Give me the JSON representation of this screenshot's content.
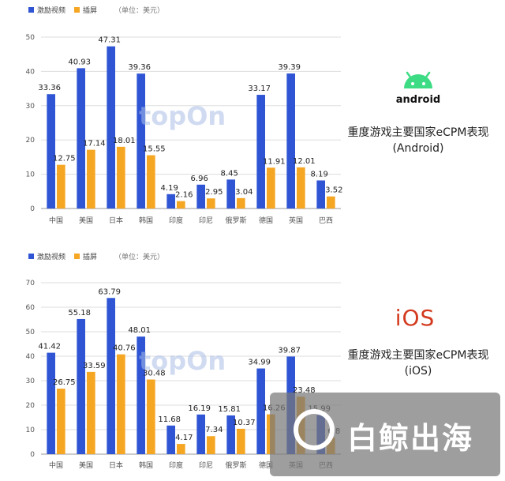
{
  "chart_data": [
    {
      "type": "bar",
      "legend": [
        "激励视频",
        "插屏"
      ],
      "unit_note": "（单位：美元）",
      "categories": [
        "中国",
        "美国",
        "日本",
        "韩国",
        "印度",
        "印尼",
        "俄罗斯",
        "德国",
        "英国",
        "巴西"
      ],
      "series": [
        {
          "name": "激励视频",
          "values": [
            33.36,
            40.93,
            47.31,
            39.36,
            4.19,
            6.96,
            8.45,
            33.17,
            39.39,
            8.19
          ]
        },
        {
          "name": "插屏",
          "values": [
            12.75,
            17.14,
            18.01,
            15.55,
            2.16,
            2.95,
            3.04,
            11.91,
            12.01,
            3.52
          ]
        }
      ],
      "ylim": [
        0,
        50
      ],
      "yticks": [
        0,
        10,
        20,
        30,
        40,
        50
      ],
      "grid": true,
      "legend_position": "top-left",
      "colors": {
        "激励视频": "#2f55d4",
        "插屏": "#f5a623"
      }
    },
    {
      "type": "bar",
      "legend": [
        "激励视频",
        "插屏"
      ],
      "unit_note": "（单位：美元）",
      "categories": [
        "中国",
        "美国",
        "日本",
        "韩国",
        "印度",
        "印尼",
        "俄罗斯",
        "德国",
        "英国",
        "巴西"
      ],
      "series": [
        {
          "name": "激励视频",
          "values": [
            41.42,
            55.18,
            63.79,
            48.01,
            11.68,
            16.19,
            15.81,
            34.99,
            39.87,
            15.99
          ]
        },
        {
          "name": "插屏",
          "values": [
            26.75,
            33.59,
            40.76,
            30.48,
            4.17,
            7.34,
            10.37,
            16.26,
            23.48,
            6.8
          ]
        }
      ],
      "ylim": [
        0,
        70
      ],
      "yticks": [
        0,
        10,
        20,
        30,
        40,
        50,
        60,
        70
      ],
      "grid": true,
      "legend_position": "top-left",
      "colors": {
        "激励视频": "#2f55d4",
        "插屏": "#f5a623"
      }
    }
  ],
  "android_panel": {
    "logo_text": "android",
    "title_line1": "重度游戏主要国家eCPM表现",
    "title_line2": "(Android)"
  },
  "ios_panel": {
    "logo_text": "iOS",
    "title_line1": "重度游戏主要国家eCPM表现",
    "title_line2": "(iOS)"
  },
  "watermarks": {
    "topon": "topOn",
    "brand": "白鲸出海"
  }
}
